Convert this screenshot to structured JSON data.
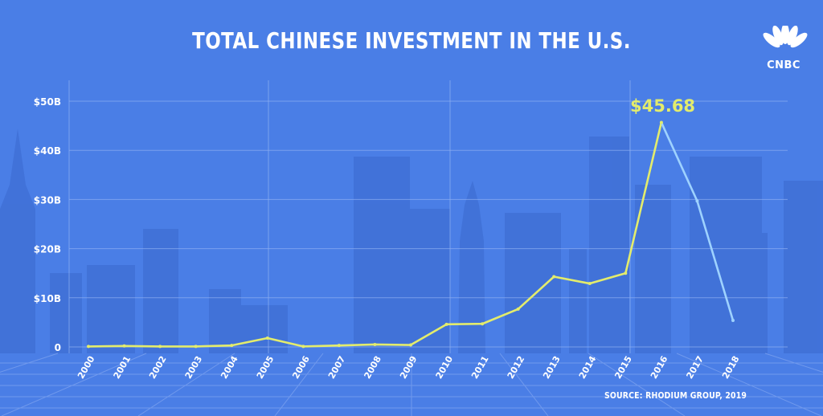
{
  "title": "TOTAL CHINESE INVESTMENT IN THE U.S.",
  "logo": {
    "name": "cnbc-peacock-logo",
    "text": "CNBC"
  },
  "source": "SOURCE: RHODIUM GROUP, 2019",
  "colors": {
    "background": "#4a7ee6",
    "line_to_2016": "#e3ec6c",
    "line_after_2016": "#9ed2ff",
    "text": "#ffffff"
  },
  "chart_data": {
    "type": "line",
    "title": "TOTAL CHINESE INVESTMENT IN THE U.S.",
    "xlabel": "",
    "ylabel": "",
    "x": [
      "2000",
      "2001",
      "2002",
      "2003",
      "2004",
      "2005",
      "2006",
      "2007",
      "2008",
      "2009",
      "2010",
      "2011",
      "2012",
      "2013",
      "2014",
      "2015",
      "2016",
      "2017",
      "2018"
    ],
    "series": [
      {
        "values": [
          0.1,
          0.2,
          0.1,
          0.1,
          0.3,
          1.8,
          0.1,
          0.3,
          0.5,
          0.4,
          4.6,
          4.7,
          7.7,
          14.3,
          12.9,
          15.0,
          45.68,
          29.7,
          5.4
        ]
      }
    ],
    "y_ticks": [
      "$50B",
      "$40B",
      "$30B",
      "$20B",
      "$10B",
      "0"
    ],
    "ylim": [
      0,
      50
    ],
    "annotations": [
      {
        "x": "2016",
        "y": 45.68,
        "text": "$45.68"
      }
    ],
    "grid": true
  }
}
